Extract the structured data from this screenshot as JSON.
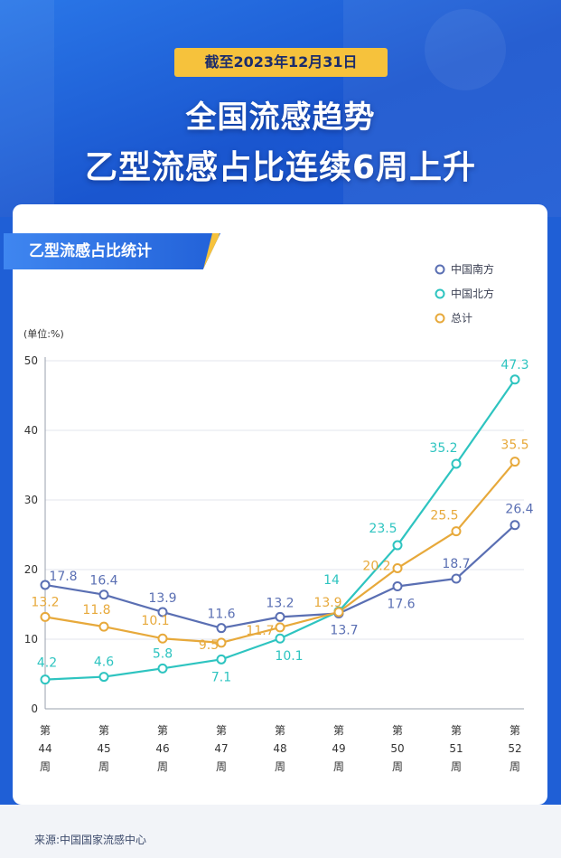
{
  "header": {
    "date_badge": "截至2023年12月31日",
    "title_line1": "全国流感趋势",
    "title_line2": "乙型流感占比连续6周上升"
  },
  "section_title": "乙型流感占比统计",
  "source": "来源:中国国家流感中心",
  "chart_data": {
    "type": "line",
    "unit_label": "(单位:%)",
    "categories": [
      [
        "第",
        "44",
        "周"
      ],
      [
        "第",
        "45",
        "周"
      ],
      [
        "第",
        "46",
        "周"
      ],
      [
        "第",
        "47",
        "周"
      ],
      [
        "第",
        "48",
        "周"
      ],
      [
        "第",
        "49",
        "周"
      ],
      [
        "第",
        "50",
        "周"
      ],
      [
        "第",
        "51",
        "周"
      ],
      [
        "第",
        "52",
        "周"
      ]
    ],
    "y_ticks": [
      "0",
      "10",
      "20",
      "30",
      "40",
      "50"
    ],
    "ylim": [
      0,
      50
    ],
    "grid": "horizontal",
    "legend_position": "top-right",
    "series": [
      {
        "name": "中国南方",
        "color": "#5a6fb3",
        "values": [
          17.8,
          16.4,
          13.9,
          11.6,
          13.2,
          13.7,
          17.6,
          18.7,
          26.4
        ],
        "labels": [
          "17.8",
          "16.4",
          "13.9",
          "11.6",
          "13.2",
          "13.7",
          "17.6",
          "18.7",
          "26.4"
        ]
      },
      {
        "name": "中国北方",
        "color": "#2ec4c0",
        "values": [
          4.2,
          4.6,
          5.8,
          7.1,
          10.1,
          14,
          23.5,
          35.2,
          47.3
        ],
        "labels": [
          "4.2",
          "4.6",
          "5.8",
          "7.1",
          "10.1",
          "14",
          "23.5",
          "35.2",
          "47.3"
        ]
      },
      {
        "name": "总计",
        "color": "#e7a93b",
        "values": [
          13.2,
          11.8,
          10.1,
          9.5,
          11.7,
          13.9,
          20.2,
          25.5,
          35.5
        ],
        "labels": [
          "13.2",
          "11.8",
          "10.1",
          "9.5",
          "11.7",
          "13.9",
          "20.2",
          "25.5",
          "35.5"
        ]
      }
    ]
  }
}
